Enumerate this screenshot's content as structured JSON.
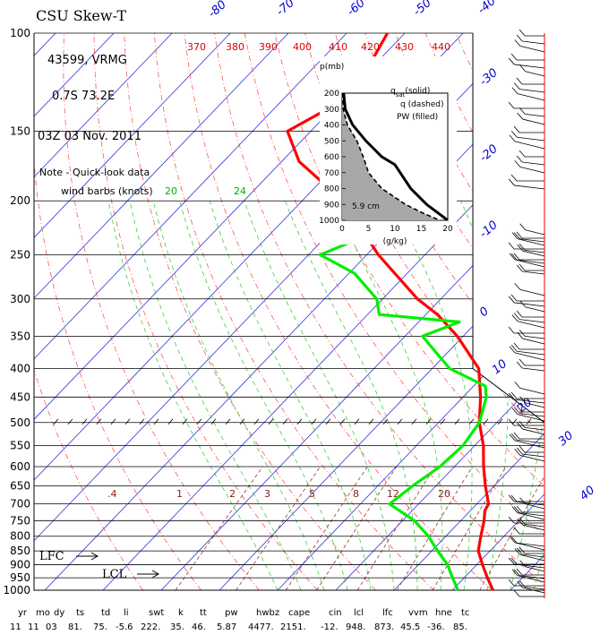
{
  "header": {
    "title": "CSU Skew-T",
    "station": "43599, VRMG",
    "location": "0.7S   73.2E",
    "time": "03Z 03 Nov. 2011",
    "note_line1": "Note - Quick-look data",
    "note_line2": "wind barbs (knots)"
  },
  "chart_data": {
    "type": "line",
    "pressure_levels": [
      100,
      150,
      200,
      250,
      300,
      350,
      400,
      450,
      500,
      550,
      600,
      650,
      700,
      750,
      800,
      850,
      900,
      950,
      1000
    ],
    "temperature_ticks": [
      -80,
      -70,
      -60,
      -50,
      -40,
      -30,
      -20,
      -10,
      0,
      10,
      20,
      30,
      40
    ],
    "theta_labels": [
      370,
      380,
      390,
      400,
      410,
      420,
      430,
      440
    ],
    "mixing_ratio_labels": [
      ".4",
      "1",
      "2",
      "3",
      "5",
      "8",
      "12",
      "20"
    ],
    "saturation_theta_e_labels": [
      "20",
      "24"
    ],
    "series": [
      {
        "variable": "temperature",
        "color": "#ff0000",
        "points": [
          {
            "p": 100,
            "t": -83
          },
          {
            "p": 120,
            "t": -80
          },
          {
            "p": 130,
            "t": -79
          },
          {
            "p": 150,
            "t": -84
          },
          {
            "p": 170,
            "t": -77
          },
          {
            "p": 200,
            "t": -63
          },
          {
            "p": 250,
            "t": -48
          },
          {
            "p": 300,
            "t": -34
          },
          {
            "p": 320,
            "t": -28
          },
          {
            "p": 350,
            "t": -21
          },
          {
            "p": 400,
            "t": -12
          },
          {
            "p": 450,
            "t": -7
          },
          {
            "p": 500,
            "t": -3
          },
          {
            "p": 550,
            "t": 1.5
          },
          {
            "p": 600,
            "t": 5
          },
          {
            "p": 650,
            "t": 8.5
          },
          {
            "p": 700,
            "t": 12
          },
          {
            "p": 720,
            "t": 12.5
          },
          {
            "p": 750,
            "t": 14
          },
          {
            "p": 800,
            "t": 16
          },
          {
            "p": 850,
            "t": 18
          },
          {
            "p": 900,
            "t": 21
          },
          {
            "p": 950,
            "t": 24
          },
          {
            "p": 1000,
            "t": 27
          }
        ]
      },
      {
        "variable": "dewpoint",
        "color": "#00ee00",
        "points": [
          {
            "p": 200,
            "t": -63
          },
          {
            "p": 230,
            "t": -53
          },
          {
            "p": 250,
            "t": -58
          },
          {
            "p": 270,
            "t": -49
          },
          {
            "p": 300,
            "t": -41
          },
          {
            "p": 320,
            "t": -38
          },
          {
            "p": 330,
            "t": -23
          },
          {
            "p": 350,
            "t": -27
          },
          {
            "p": 400,
            "t": -17
          },
          {
            "p": 430,
            "t": -8
          },
          {
            "p": 450,
            "t": -6
          },
          {
            "p": 500,
            "t": -3
          },
          {
            "p": 550,
            "t": -2
          },
          {
            "p": 600,
            "t": -2.5
          },
          {
            "p": 650,
            "t": -4
          },
          {
            "p": 700,
            "t": -5
          },
          {
            "p": 750,
            "t": 2
          },
          {
            "p": 800,
            "t": 7
          },
          {
            "p": 850,
            "t": 11
          },
          {
            "p": 900,
            "t": 15
          },
          {
            "p": 950,
            "t": 18
          },
          {
            "p": 1000,
            "t": 21
          }
        ]
      }
    ],
    "inset": {
      "ylabel": "p(mb)",
      "xlabel": "(g/kg)",
      "y_ticks": [
        200,
        300,
        400,
        500,
        600,
        700,
        800,
        900,
        1000
      ],
      "x_ticks": [
        0,
        5,
        10,
        15,
        20
      ],
      "xlim": [
        0,
        20
      ],
      "ylim": [
        200,
        1000
      ],
      "legend_line1": "q",
      "legend_line1_sub": "sat",
      "legend_line1_rest": "(solid)",
      "legend_line2": "q  (dashed)",
      "legend_line3": "PW  (filled)",
      "pw_label": "5.9  cm",
      "qsat": [
        {
          "p": 200,
          "q": 0.3
        },
        {
          "p": 300,
          "q": 0.6
        },
        {
          "p": 400,
          "q": 2
        },
        {
          "p": 500,
          "q": 4.5
        },
        {
          "p": 600,
          "q": 7.5
        },
        {
          "p": 650,
          "q": 10
        },
        {
          "p": 700,
          "q": 11
        },
        {
          "p": 800,
          "q": 13
        },
        {
          "p": 900,
          "q": 16
        },
        {
          "p": 950,
          "q": 18
        },
        {
          "p": 1000,
          "q": 20
        }
      ],
      "q": [
        {
          "p": 200,
          "q": 0.1
        },
        {
          "p": 300,
          "q": 0.2
        },
        {
          "p": 400,
          "q": 1
        },
        {
          "p": 500,
          "q": 2.8
        },
        {
          "p": 600,
          "q": 4
        },
        {
          "p": 700,
          "q": 5
        },
        {
          "p": 800,
          "q": 7.5
        },
        {
          "p": 900,
          "q": 12
        },
        {
          "p": 950,
          "q": 15
        },
        {
          "p": 1000,
          "q": 18.5
        }
      ]
    },
    "annotations": {
      "lfc": "LFC",
      "lcl": "LCL"
    },
    "indices": {
      "labels": [
        "yr",
        "mo",
        "dy",
        "ts",
        "td",
        "li",
        "swt",
        "k",
        "tt",
        "pw",
        "hwbz",
        "cape",
        "cin",
        "lcl",
        "lfc",
        "vvm",
        "hne",
        "tc"
      ],
      "values": [
        "11",
        "11",
        "03",
        "81.",
        "75.",
        "-5.6",
        "222.",
        "35.",
        "46.",
        "5.87",
        "4477.",
        "2151.",
        "-12.",
        "948.",
        "873.",
        "45.5",
        "-36.",
        "85."
      ]
    }
  }
}
